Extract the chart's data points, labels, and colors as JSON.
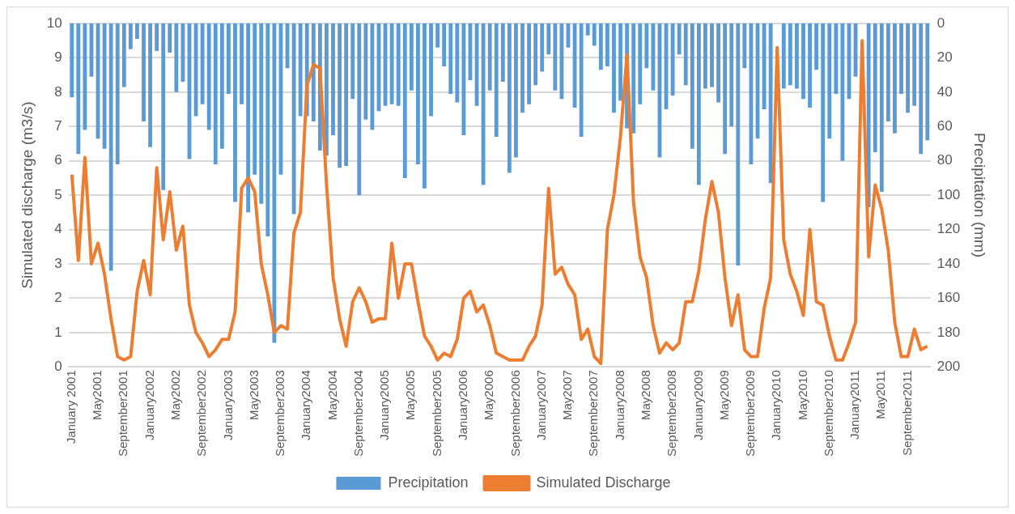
{
  "chart_data": {
    "type": "bar",
    "ylabel": "Simulated discharge (m3/s)",
    "y2label": "Precipitation (mm)",
    "categories": [
      "January 2001",
      null,
      null,
      null,
      "May2001",
      null,
      null,
      null,
      "September2001",
      null,
      null,
      null,
      "January2002",
      null,
      null,
      null,
      "May2002",
      null,
      null,
      null,
      "September2002",
      null,
      null,
      null,
      "January2003",
      null,
      null,
      null,
      "May2003",
      null,
      null,
      null,
      "September2003",
      null,
      null,
      null,
      "January2004",
      null,
      null,
      null,
      "May2004",
      null,
      null,
      null,
      "September2004",
      null,
      null,
      null,
      "January2005",
      null,
      null,
      null,
      "May2005",
      null,
      null,
      null,
      "September2005",
      null,
      null,
      null,
      "January2006",
      null,
      null,
      null,
      "May2006",
      null,
      null,
      null,
      "September2006",
      null,
      null,
      null,
      "January2007",
      null,
      null,
      null,
      "May2007",
      null,
      null,
      null,
      "September2007",
      null,
      null,
      null,
      "January2008",
      null,
      null,
      null,
      "May2008",
      null,
      null,
      null,
      "September2008",
      null,
      null,
      null,
      "January2009",
      null,
      null,
      null,
      "May2009",
      null,
      null,
      null,
      "September2009",
      null,
      null,
      null,
      "January2010",
      null,
      null,
      null,
      "May2010",
      null,
      null,
      null,
      "September2010",
      null,
      null,
      null,
      "January2011",
      null,
      null,
      null,
      "May2011",
      null,
      null,
      null,
      "September2011",
      null,
      null,
      null
    ],
    "series": [
      {
        "name": "Precipitation",
        "axis": "y2",
        "color": "#5b9bd5",
        "values": [
          43,
          76,
          62,
          31,
          67,
          73,
          144,
          82,
          37,
          15,
          9,
          57,
          72,
          16,
          97,
          17,
          40,
          34,
          79,
          54,
          47,
          62,
          82,
          73,
          41,
          104,
          47,
          110,
          88,
          105,
          124,
          186,
          88,
          26,
          111,
          54,
          54,
          57,
          74,
          77,
          65,
          84,
          83,
          44,
          100,
          56,
          62,
          51,
          48,
          47,
          48,
          90,
          39,
          82,
          96,
          54,
          14,
          25,
          41,
          46,
          65,
          33,
          48,
          94,
          39,
          66,
          34,
          87,
          78,
          52,
          47,
          36,
          28,
          18,
          39,
          44,
          14,
          49,
          66,
          7,
          13,
          27,
          25,
          52,
          45,
          61,
          64,
          47,
          26,
          39,
          78,
          50,
          42,
          18,
          36,
          73,
          94,
          38,
          37,
          46,
          76,
          60,
          141,
          26,
          82,
          67,
          50,
          93,
          null,
          38,
          36,
          38,
          44,
          49,
          27,
          104,
          67,
          41,
          80,
          44,
          31,
          null,
          107,
          75,
          98,
          57,
          64,
          41,
          52,
          48,
          76,
          68
        ]
      },
      {
        "name": "Simulated Discharge",
        "type": "line",
        "color": "#ed7d31",
        "values": [
          5.6,
          3.1,
          6.1,
          3.0,
          3.6,
          2.7,
          1.4,
          0.3,
          0.2,
          0.3,
          2.2,
          3.1,
          2.1,
          5.8,
          3.7,
          5.1,
          3.4,
          4.1,
          1.8,
          1.0,
          0.7,
          0.3,
          0.5,
          0.8,
          0.8,
          1.6,
          5.2,
          5.5,
          5.1,
          3.0,
          2.1,
          1.0,
          1.2,
          1.1,
          3.9,
          4.5,
          8.2,
          8.8,
          8.7,
          5.3,
          2.6,
          1.4,
          0.6,
          1.9,
          2.3,
          1.9,
          1.3,
          1.4,
          1.4,
          3.6,
          2.0,
          3.0,
          3.0,
          1.9,
          0.9,
          0.6,
          0.2,
          0.4,
          0.3,
          0.8,
          2.0,
          2.2,
          1.6,
          1.8,
          1.2,
          0.4,
          0.3,
          0.2,
          0.2,
          0.2,
          0.6,
          0.9,
          1.8,
          5.2,
          2.7,
          2.9,
          2.4,
          2.1,
          0.8,
          1.1,
          0.3,
          0.1,
          4.0,
          5.0,
          6.7,
          9.1,
          4.8,
          3.2,
          2.6,
          1.2,
          0.4,
          0.7,
          0.5,
          0.7,
          1.9,
          1.9,
          2.8,
          4.3,
          5.4,
          4.5,
          2.6,
          1.2,
          2.1,
          0.5,
          0.3,
          0.3,
          1.7,
          2.6,
          9.3,
          3.7,
          2.7,
          2.2,
          1.5,
          4.0,
          1.9,
          1.8,
          0.9,
          0.2,
          0.2,
          0.7,
          1.3,
          9.5,
          3.2,
          5.3,
          4.6,
          3.4,
          1.3,
          0.3,
          0.3,
          1.1,
          0.5,
          0.6
        ]
      }
    ],
    "ylim": [
      0,
      10
    ],
    "yticks": [
      0,
      1,
      2,
      3,
      4,
      5,
      6,
      7,
      8,
      9,
      10
    ],
    "y2lim": [
      200,
      0
    ],
    "y2ticks": [
      0,
      20,
      40,
      60,
      80,
      100,
      120,
      140,
      160,
      180,
      200
    ],
    "grid": "y",
    "legend": "bottom",
    "marker": "none"
  }
}
